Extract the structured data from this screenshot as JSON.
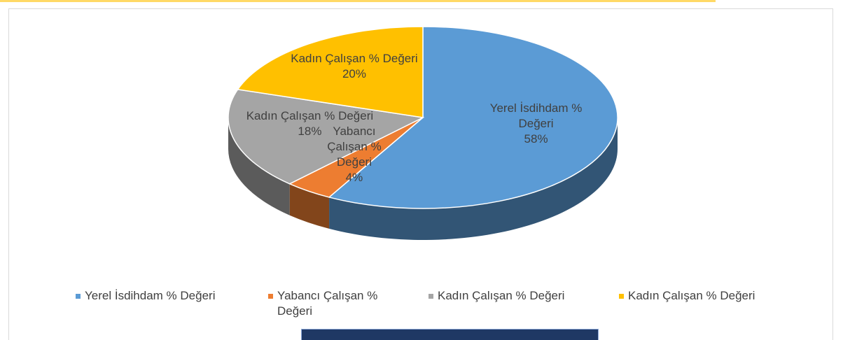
{
  "chart_data": {
    "type": "pie",
    "categories": [
      "Yerel İsdihdam % Değeri",
      "Yabancı Çalışan % Değeri",
      "Kadın Çalışan % Değeri",
      "Kadın Çalışan % Değeri"
    ],
    "values": [
      58,
      4,
      18,
      20
    ],
    "value_labels": [
      "58%",
      "4%",
      "18%",
      "20%"
    ],
    "colors": [
      "#5b9bd5",
      "#ed7d31",
      "#a5a5a5",
      "#ffc000"
    ],
    "legend": "bottom"
  }
}
